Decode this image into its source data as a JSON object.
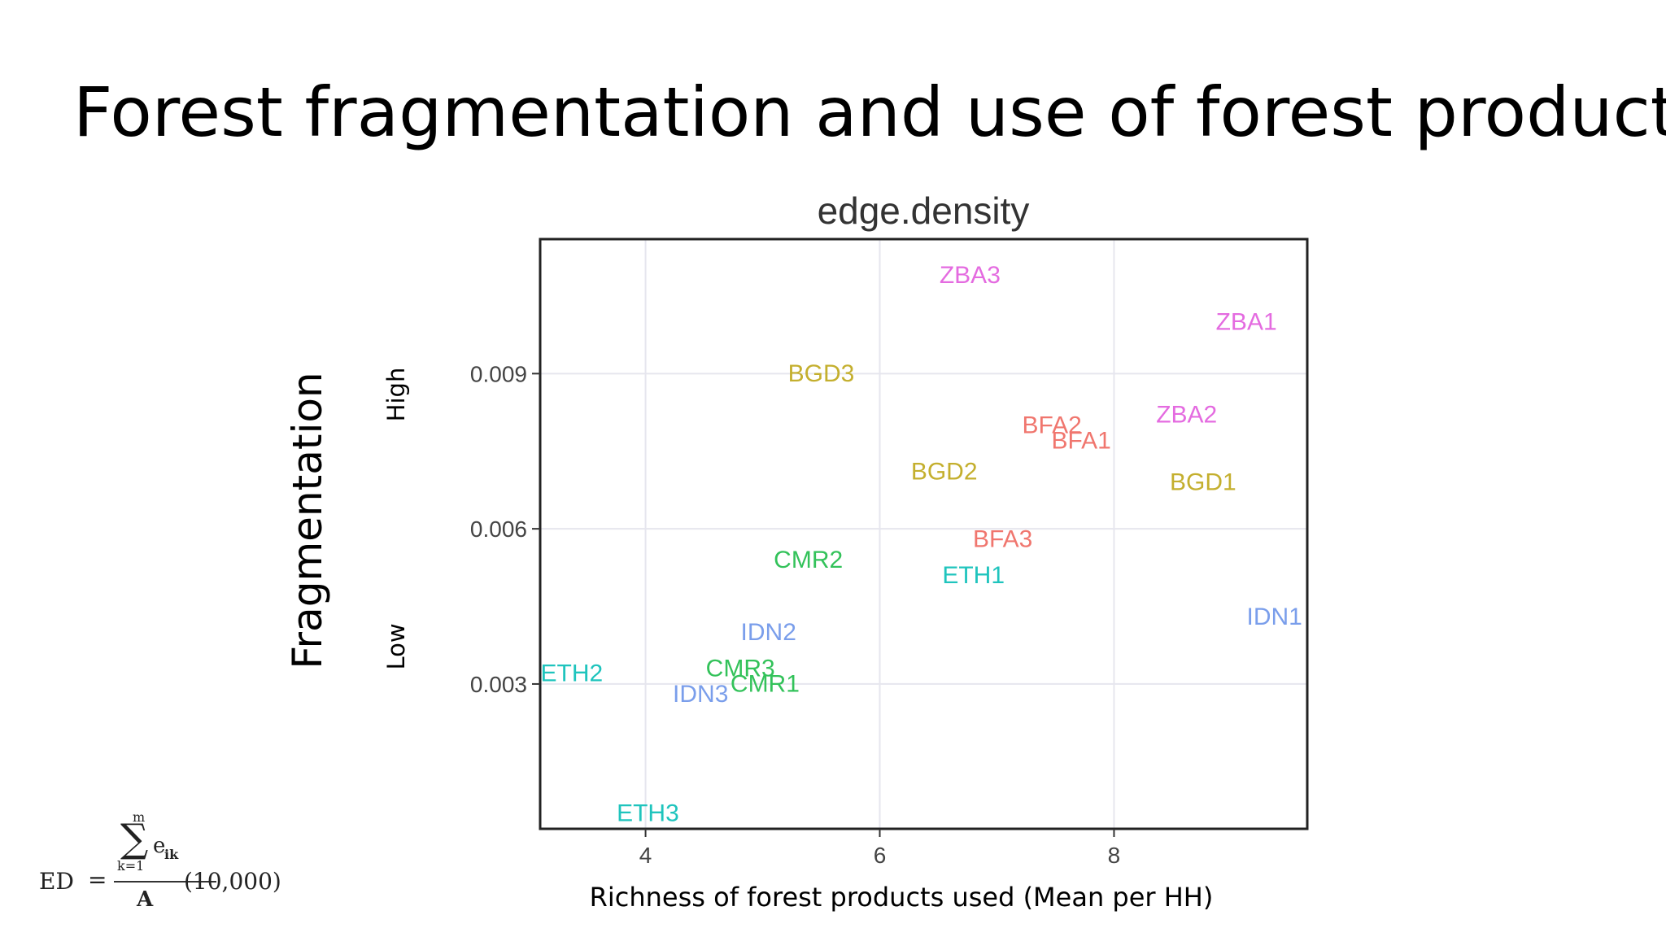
{
  "page": {
    "title": "Forest fragmentation and use of forest products",
    "y_title": "Fragmentation",
    "y_high": "High",
    "y_low": "Low",
    "x_title": "Richness of forest products used (Mean per HH)"
  },
  "formula": {
    "lhs": "ED",
    "equals": "=",
    "sum": "∑",
    "upper": "m",
    "lower": "k=1",
    "term": "e",
    "subscript": "ik",
    "denominator": "A",
    "factor": "(10,000)"
  },
  "chart_data": {
    "type": "scatter",
    "title": "edge.density",
    "xlabel": "",
    "ylabel": "",
    "xlim": [
      3.1,
      9.65
    ],
    "ylim": [
      0.0002,
      0.0116
    ],
    "x_ticks": [
      4,
      6,
      8
    ],
    "x_tick_labels": [
      "4",
      "6",
      "8"
    ],
    "y_ticks": [
      0.003,
      0.006,
      0.009
    ],
    "y_tick_labels": [
      "0.003",
      "0.006",
      "0.009"
    ],
    "grid": true,
    "colors": {
      "BFA": "#F0766E",
      "BGD": "#C4AF2E",
      "CMR": "#33C25A",
      "ETH": "#1FC4BD",
      "IDN": "#7A9EEB",
      "ZBA": "#E46BE0"
    },
    "points": [
      {
        "label": "ZBA3",
        "group": "ZBA",
        "x": 6.77,
        "y": 0.0109
      },
      {
        "label": "ZBA1",
        "group": "ZBA",
        "x": 9.13,
        "y": 0.01
      },
      {
        "label": "BGD3",
        "group": "BGD",
        "x": 5.5,
        "y": 0.009
      },
      {
        "label": "BFA2",
        "group": "BFA",
        "x": 7.47,
        "y": 0.008
      },
      {
        "label": "BFA1",
        "group": "BFA",
        "x": 7.72,
        "y": 0.0077
      },
      {
        "label": "ZBA2",
        "group": "ZBA",
        "x": 8.62,
        "y": 0.0082
      },
      {
        "label": "BGD2",
        "group": "BGD",
        "x": 6.55,
        "y": 0.0071
      },
      {
        "label": "BGD1",
        "group": "BGD",
        "x": 8.76,
        "y": 0.0069
      },
      {
        "label": "BFA3",
        "group": "BFA",
        "x": 7.05,
        "y": 0.0058
      },
      {
        "label": "CMR2",
        "group": "CMR",
        "x": 5.39,
        "y": 0.0054
      },
      {
        "label": "ETH1",
        "group": "ETH",
        "x": 6.8,
        "y": 0.0051
      },
      {
        "label": "IDN1",
        "group": "IDN",
        "x": 9.37,
        "y": 0.0043
      },
      {
        "label": "IDN2",
        "group": "IDN",
        "x": 5.05,
        "y": 0.004
      },
      {
        "label": "ETH2",
        "group": "ETH",
        "x": 3.37,
        "y": 0.0032
      },
      {
        "label": "CMR3",
        "group": "CMR",
        "x": 4.81,
        "y": 0.0033
      },
      {
        "label": "CMR1",
        "group": "CMR",
        "x": 5.02,
        "y": 0.003
      },
      {
        "label": "IDN3",
        "group": "IDN",
        "x": 4.47,
        "y": 0.0028
      },
      {
        "label": "ETH3",
        "group": "ETH",
        "x": 4.02,
        "y": 0.0005
      }
    ]
  }
}
